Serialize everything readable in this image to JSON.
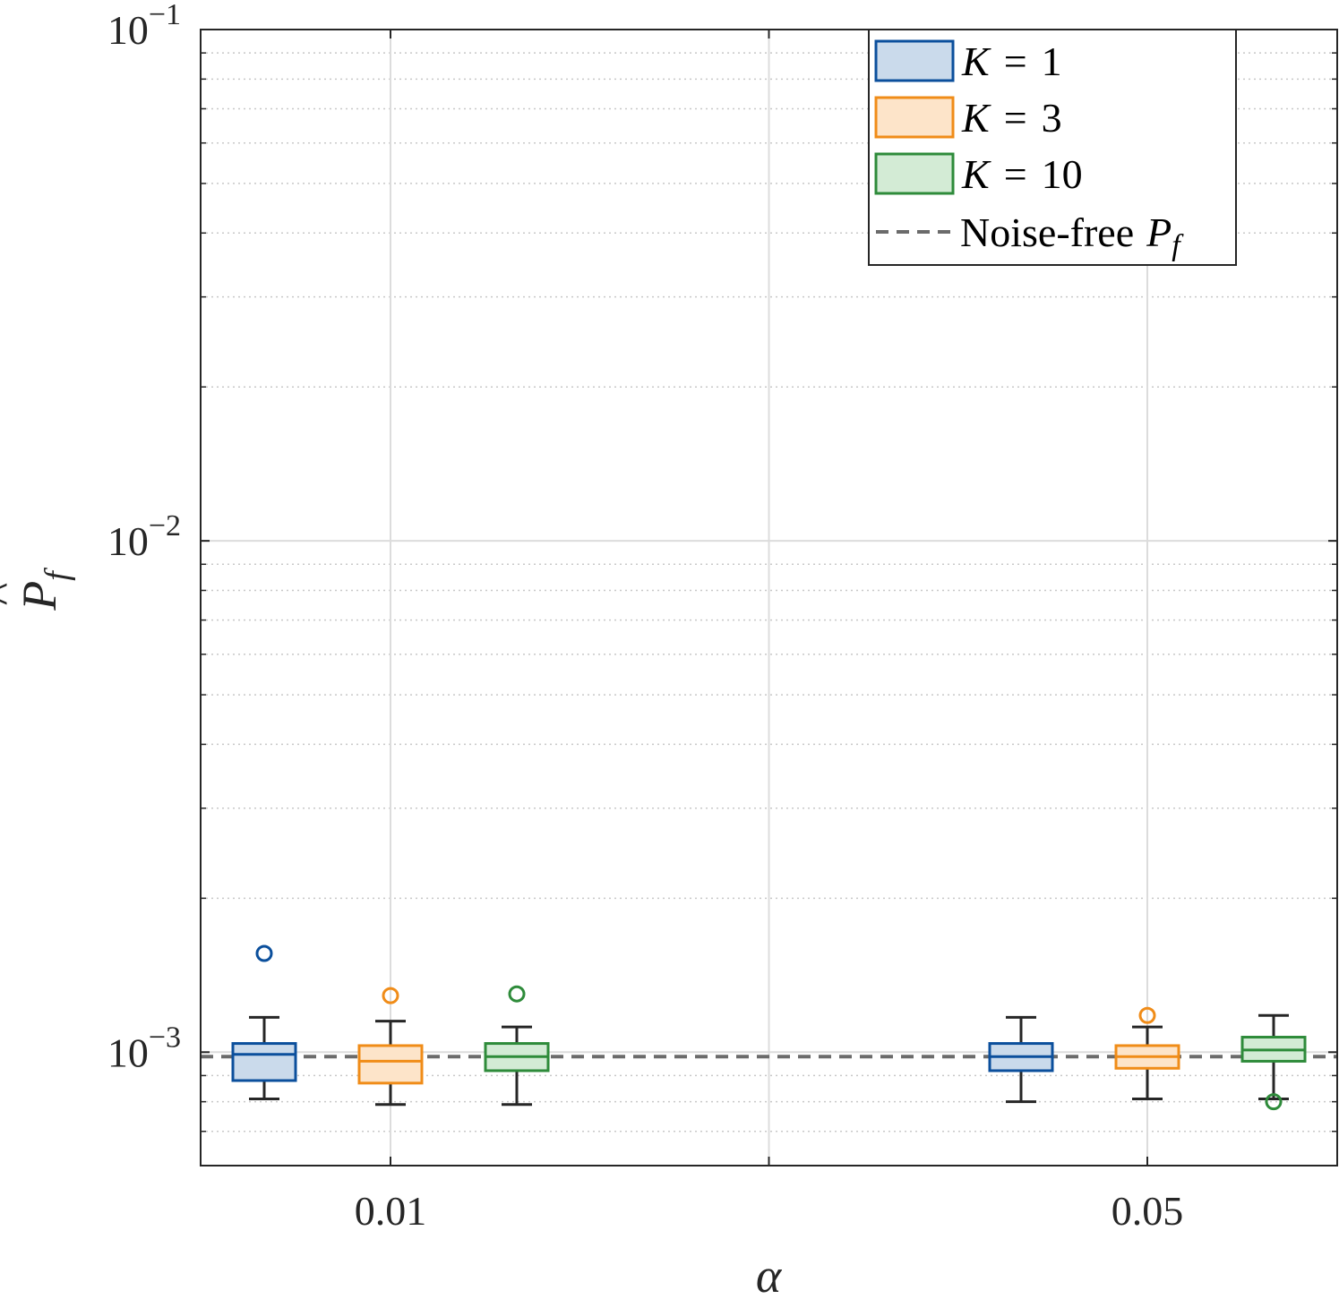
{
  "chart_data": {
    "type": "box",
    "title": "",
    "xlabel": "α",
    "ylabel": "P̂_f",
    "yscale": "log",
    "ylim": [
      0.0006,
      0.1
    ],
    "y_ticks": [
      {
        "value": 0.001,
        "base": "10",
        "exp": "−3"
      },
      {
        "value": 0.01,
        "base": "10",
        "exp": "−2"
      },
      {
        "value": 0.1,
        "base": "10",
        "exp": "−1"
      }
    ],
    "categories": [
      "0.01",
      "0.05"
    ],
    "grid": true,
    "legend_position": "top-right",
    "reference_line": {
      "name": "Noise-free P_f",
      "label": "Noise-free",
      "symbol": "P",
      "subscript": "f",
      "value": 0.00098,
      "color": "#6b6b6b",
      "style": "dashed"
    },
    "series": [
      {
        "name": "K = 1",
        "legend_var": "K",
        "legend_eq": "=",
        "legend_num": "1",
        "color": "#0b4f9c",
        "fill": "#cadaeb",
        "boxes": [
          {
            "category": "0.01",
            "q1": 0.00088,
            "median": 0.00099,
            "q3": 0.00104,
            "whisker_low": 0.00081,
            "whisker_high": 0.00117,
            "outliers": [
              0.00156
            ]
          },
          {
            "category": "0.05",
            "q1": 0.00092,
            "median": 0.00098,
            "q3": 0.00104,
            "whisker_low": 0.0008,
            "whisker_high": 0.00117,
            "outliers": []
          }
        ]
      },
      {
        "name": "K = 3",
        "legend_var": "K",
        "legend_eq": "=",
        "legend_num": "3",
        "color": "#f08c18",
        "fill": "#fde4c9",
        "boxes": [
          {
            "category": "0.01",
            "q1": 0.00087,
            "median": 0.00096,
            "q3": 0.00103,
            "whisker_low": 0.00079,
            "whisker_high": 0.00115,
            "outliers": [
              0.00129
            ]
          },
          {
            "category": "0.05",
            "q1": 0.00093,
            "median": 0.00098,
            "q3": 0.00103,
            "whisker_low": 0.00081,
            "whisker_high": 0.00112,
            "outliers": [
              0.00118
            ]
          }
        ]
      },
      {
        "name": "K = 10",
        "legend_var": "K",
        "legend_eq": "=",
        "legend_num": "10",
        "color": "#2e8b3a",
        "fill": "#d3ebd5",
        "boxes": [
          {
            "category": "0.01",
            "q1": 0.00092,
            "median": 0.00098,
            "q3": 0.00104,
            "whisker_low": 0.00079,
            "whisker_high": 0.00112,
            "outliers": [
              0.0013
            ]
          },
          {
            "category": "0.05",
            "q1": 0.00096,
            "median": 0.00101,
            "q3": 0.00107,
            "whisker_low": 0.00081,
            "whisker_high": 0.00118,
            "outliers": [
              0.0008
            ]
          }
        ]
      }
    ]
  }
}
